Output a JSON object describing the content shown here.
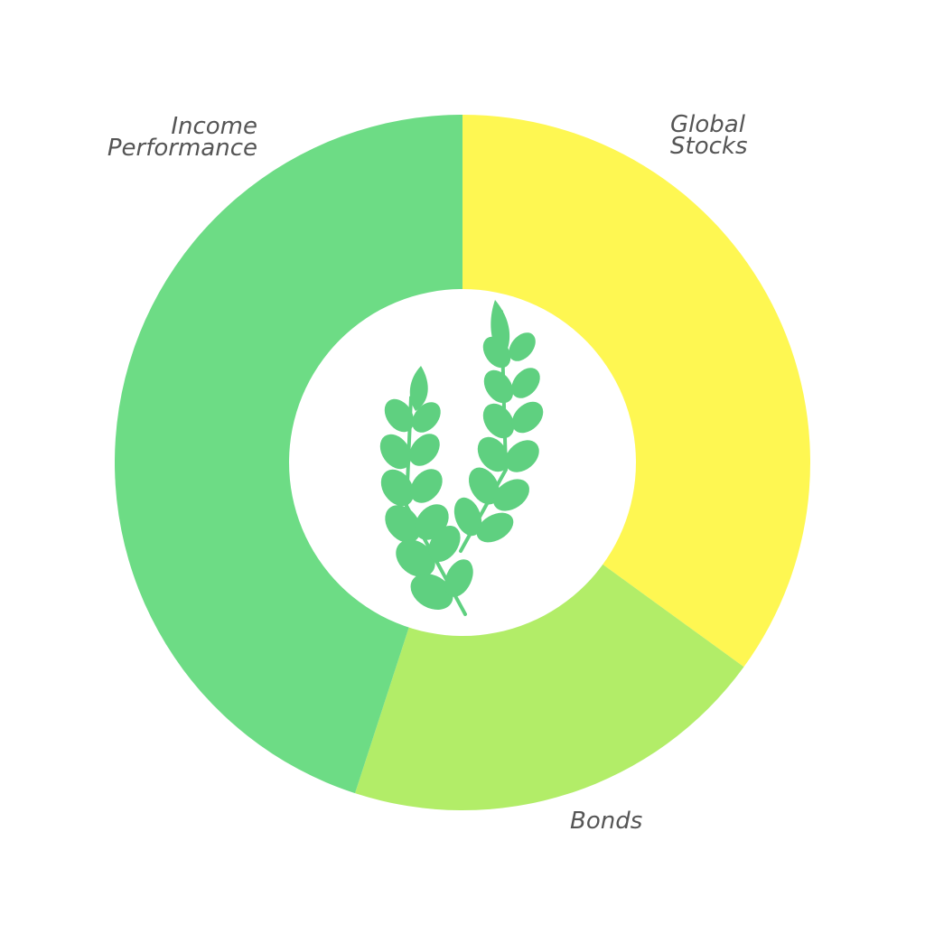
{
  "chart_data": {
    "type": "pie",
    "variant": "donut",
    "title": "",
    "categories": [
      "Global Stocks",
      "Bonds",
      "Income Performance"
    ],
    "values": [
      35,
      20,
      45
    ],
    "unit": "%",
    "slices": [
      {
        "label_lines": [
          "Global",
          "Stocks"
        ],
        "value": 35,
        "color": "#fef752"
      },
      {
        "label_lines": [
          "Bonds"
        ],
        "value": 20,
        "color": "#b2ed68"
      },
      {
        "label_lines": [
          "Income",
          "Performance"
        ],
        "value": 45,
        "color": "#6ddc85"
      }
    ],
    "center_icon": "wheat-sprig-icon",
    "center_icon_color": "#5fd080"
  }
}
